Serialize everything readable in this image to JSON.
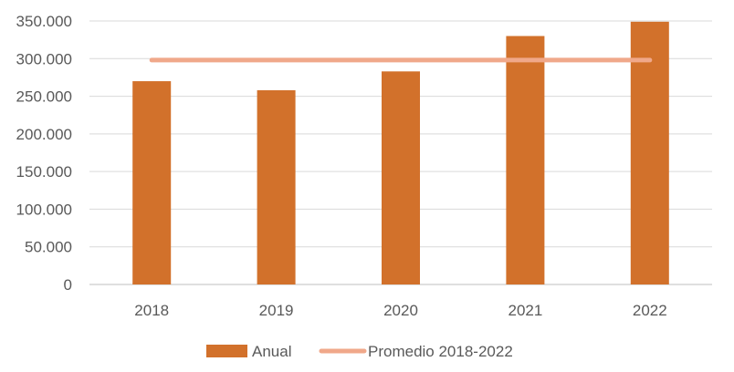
{
  "chart_data": {
    "type": "bar",
    "categories": [
      "2018",
      "2019",
      "2020",
      "2021",
      "2022"
    ],
    "series": [
      {
        "name": "Anual",
        "type": "bar",
        "color": "#D2712B",
        "values": [
          270000,
          258000,
          283000,
          330000,
          349000
        ]
      },
      {
        "name": "Promedio 2018-2022",
        "type": "line",
        "color": "#F0A88A",
        "values": [
          298000,
          298000,
          298000,
          298000,
          298000
        ]
      }
    ],
    "y_ticks": [
      "0",
      "50.000",
      "100.000",
      "150.000",
      "200.000",
      "250.000",
      "300.000",
      "350.000"
    ],
    "ylim": [
      0,
      350000
    ],
    "grid": true,
    "legend_position": "bottom"
  }
}
